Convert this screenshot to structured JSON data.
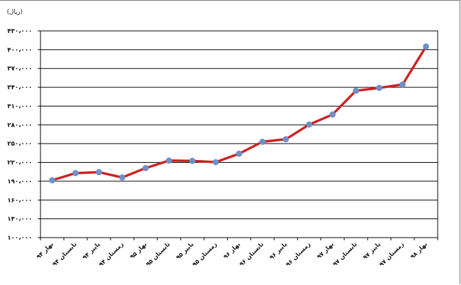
{
  "unit_label": "(ریال)",
  "chart_data": {
    "type": "line",
    "title": "",
    "xlabel": "",
    "ylabel": "(ریال)",
    "ylim": [
      100000,
      430000
    ],
    "yticks": [
      100000,
      130000,
      160000,
      190000,
      220000,
      250000,
      280000,
      310000,
      340000,
      370000,
      400000,
      430000
    ],
    "ytick_labels": [
      "۱۰۰،۰۰۰",
      "۱۳۰،۰۰۰",
      "۱۶۰،۰۰۰",
      "۱۹۰،۰۰۰",
      "۲۲۰،۰۰۰",
      "۲۵۰،۰۰۰",
      "۲۸۰،۰۰۰",
      "۳۱۰،۰۰۰",
      "۳۴۰،۰۰۰",
      "۳۷۰،۰۰۰",
      "۴۰۰،۰۰۰",
      "۴۳۰،۰۰۰"
    ],
    "categories": [
      "بهار ۹۴",
      "تابستان ۹۴",
      "پاییز ۹۴",
      "زمستان ۹۴",
      "بهار ۹۵",
      "تابستان ۹۵",
      "پاییز ۹۵",
      "زمستان ۹۵",
      "بهار ۹۶",
      "تابستان ۹۶",
      "پاییز ۹۶",
      "زمستان ۹۶",
      "بهار ۹۷",
      "تابستان ۹۷",
      "پاییز ۹۷",
      "زمستان ۹۷",
      "بهار ۹۸"
    ],
    "series": [
      {
        "values": [
          191500,
          203000,
          204500,
          196000,
          211000,
          223000,
          222500,
          220500,
          234000,
          253000,
          257000,
          280500,
          296500,
          334500,
          339000,
          344500,
          405000
        ]
      }
    ],
    "grid": true,
    "line_color": "#cc2222",
    "marker_color": "#6f8fc8"
  }
}
